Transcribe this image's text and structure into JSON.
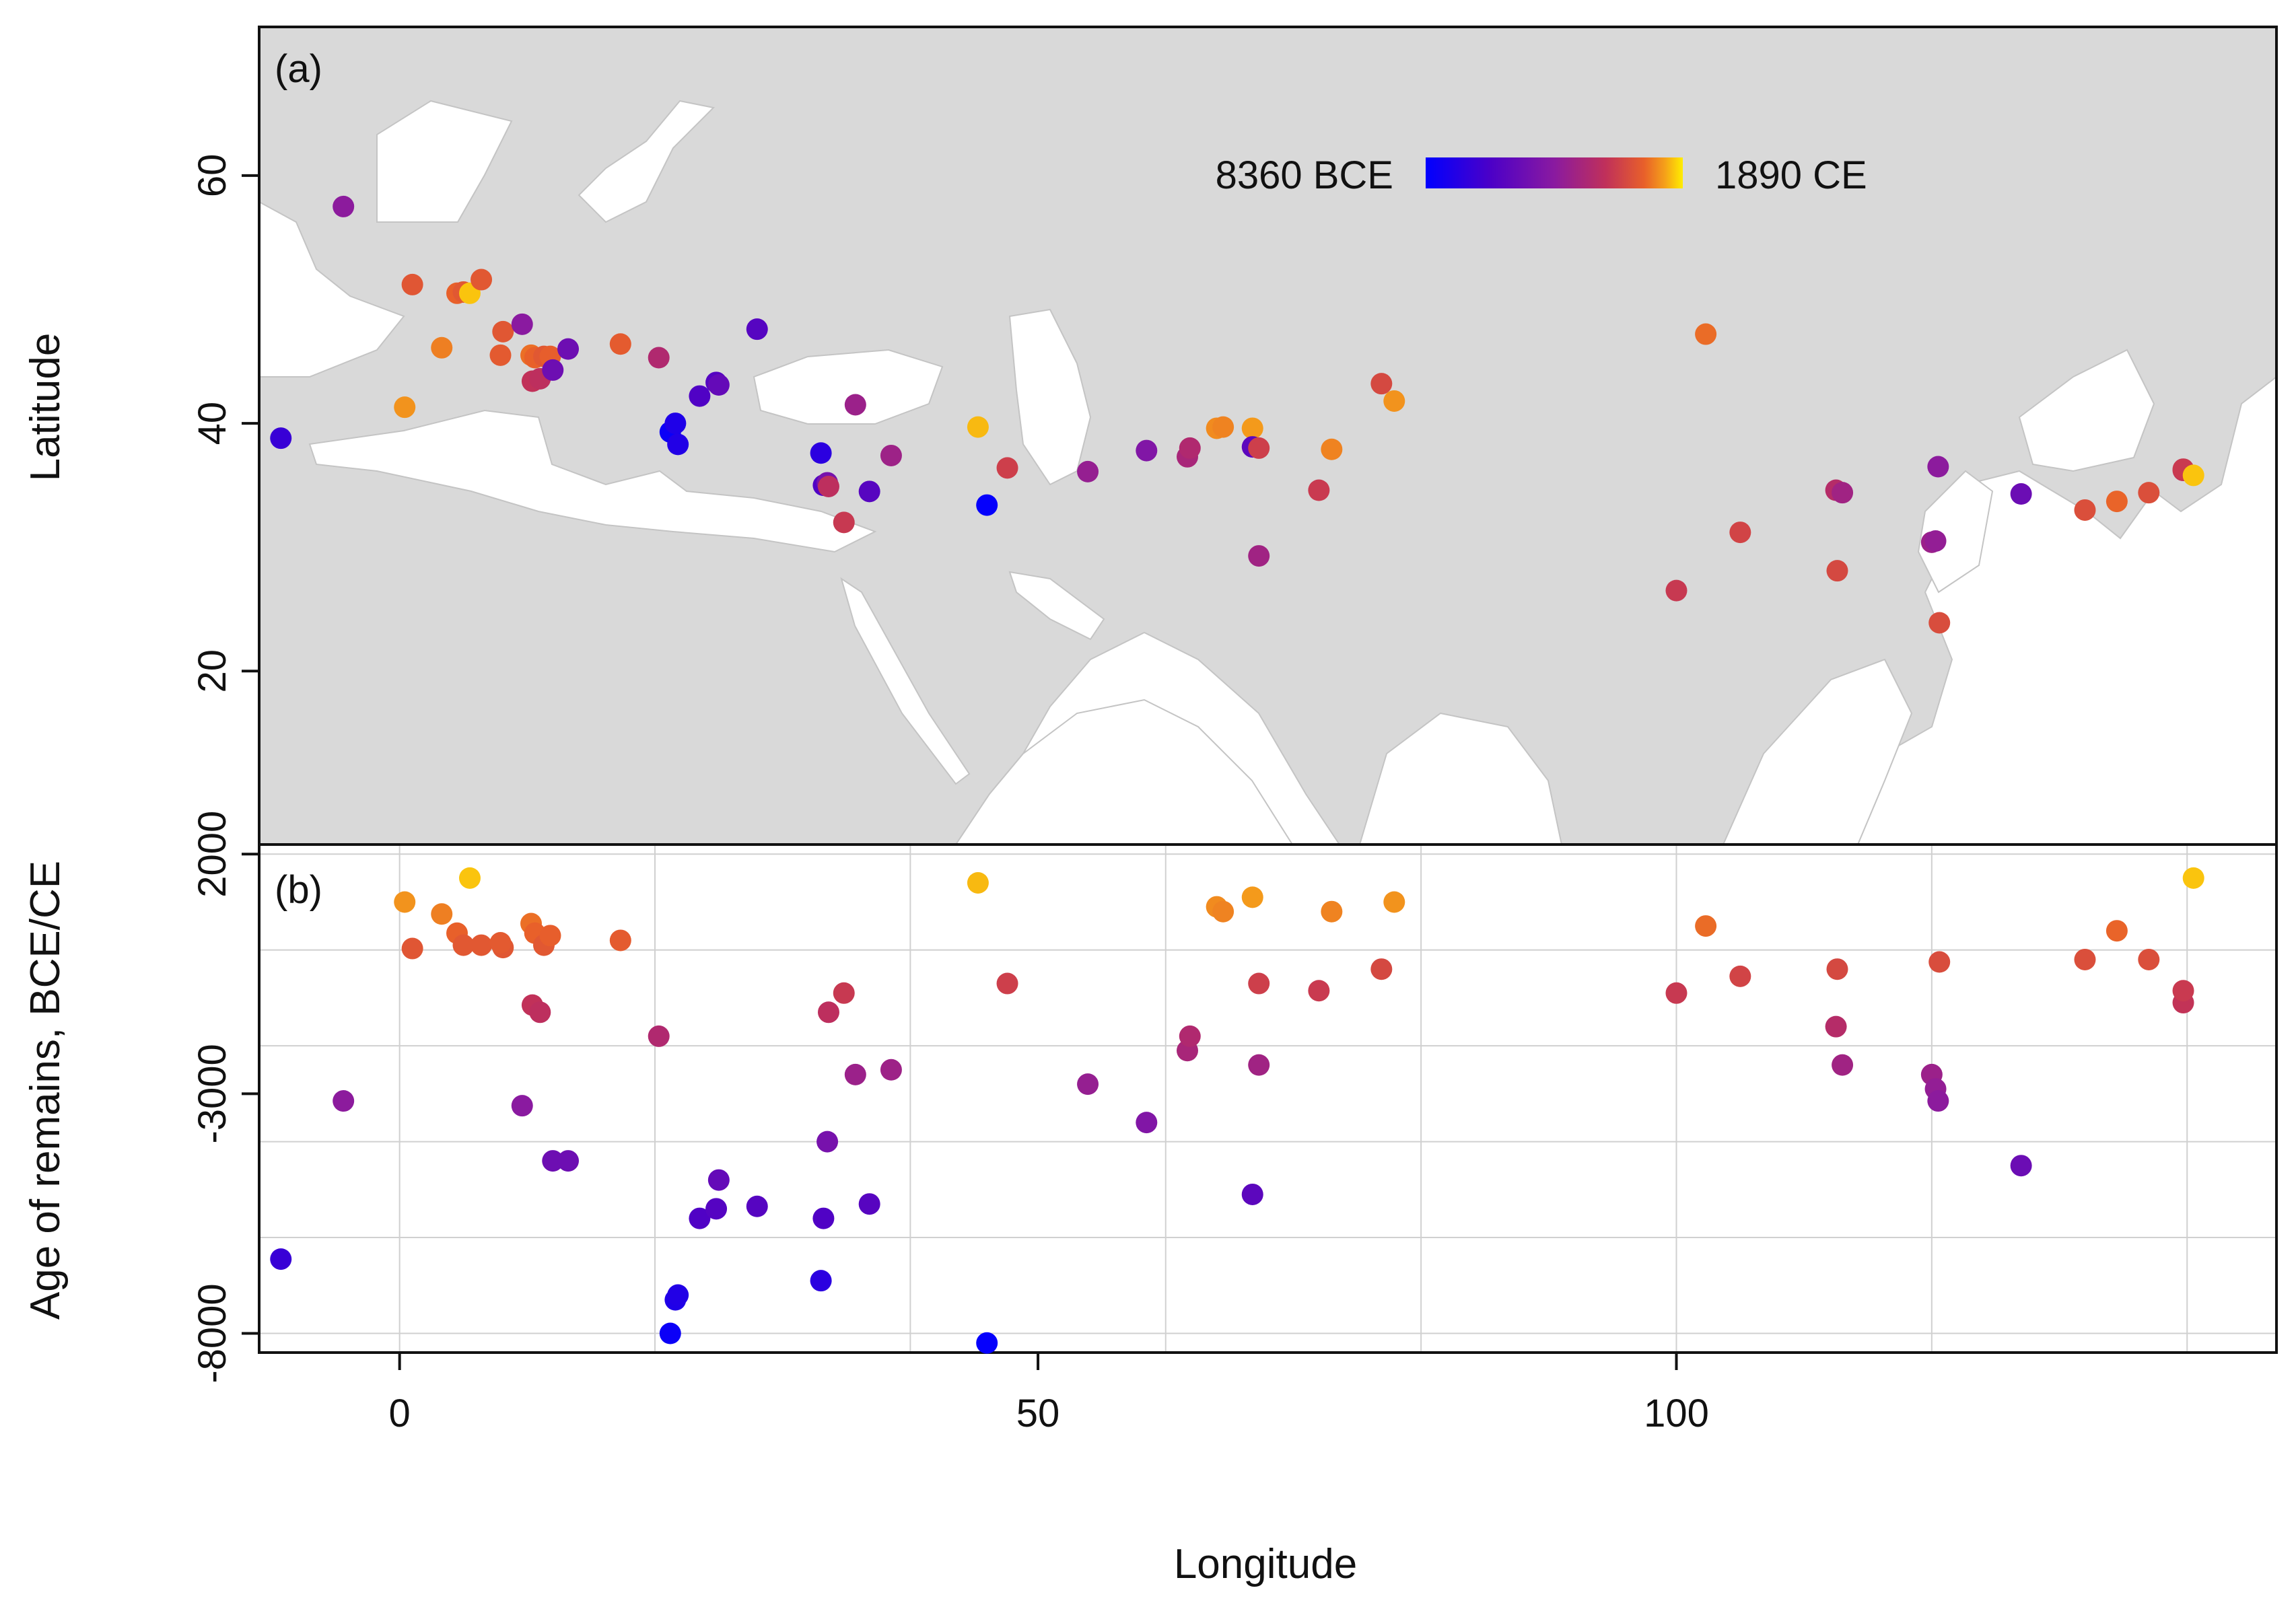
{
  "chart_data": [
    {
      "panel": "(a)",
      "type": "scatter",
      "title": "",
      "xlabel": "",
      "ylabel": "Latitude",
      "xlim": [
        -11,
        147
      ],
      "ylim": [
        6,
        72
      ],
      "yticks": [
        20,
        40,
        60
      ],
      "background": "land map of Europe and Asia",
      "colorbar": {
        "min_label": "8360 BCE",
        "max_label": "1890 CE",
        "min": -8360,
        "max": 1890,
        "colors": [
          "#0000ff",
          "#4b00c8",
          "#8a1aa0",
          "#c0305a",
          "#e8602a",
          "#f5a019",
          "#ffee00"
        ]
      },
      "legend_position": "top-right",
      "points": [
        {
          "lon": -4.4,
          "lat": 57.5,
          "age": -3150
        },
        {
          "lon": -9.3,
          "lat": 38.8,
          "age": -6450
        },
        {
          "lon": 0.4,
          "lat": 41.3,
          "age": 1000
        },
        {
          "lon": 3.3,
          "lat": 46.1,
          "age": 750
        },
        {
          "lon": 1.0,
          "lat": 51.2,
          "age": 30
        },
        {
          "lon": 4.5,
          "lat": 50.5,
          "age": 350
        },
        {
          "lon": 5.0,
          "lat": 50.6,
          "age": 100
        },
        {
          "lon": 5.5,
          "lat": 50.5,
          "age": 1500
        },
        {
          "lon": 6.4,
          "lat": 51.6,
          "age": 100
        },
        {
          "lon": 8.1,
          "lat": 47.4,
          "age": 50
        },
        {
          "lon": 7.9,
          "lat": 45.5,
          "age": 150
        },
        {
          "lon": 9.6,
          "lat": 48.0,
          "age": -3250
        },
        {
          "lon": 10.3,
          "lat": 45.5,
          "age": 550
        },
        {
          "lon": 10.4,
          "lat": 43.4,
          "age": -1150
        },
        {
          "lon": 10.6,
          "lat": 45.3,
          "age": 350
        },
        {
          "lon": 11.0,
          "lat": 43.6,
          "age": -1300
        },
        {
          "lon": 11.3,
          "lat": 45.4,
          "age": 100
        },
        {
          "lon": 11.8,
          "lat": 45.4,
          "age": 300
        },
        {
          "lon": 12.0,
          "lat": 44.3,
          "age": -4400
        },
        {
          "lon": 13.2,
          "lat": 46.0,
          "age": -4400
        },
        {
          "lon": 17.3,
          "lat": 46.4,
          "age": 200
        },
        {
          "lon": 20.3,
          "lat": 45.3,
          "age": -1800
        },
        {
          "lon": 21.2,
          "lat": 39.3,
          "age": -8000
        },
        {
          "lon": 21.6,
          "lat": 40.0,
          "age": -7300
        },
        {
          "lon": 21.8,
          "lat": 38.3,
          "age": -7200
        },
        {
          "lon": 23.5,
          "lat": 42.2,
          "age": -5600
        },
        {
          "lon": 24.8,
          "lat": 43.3,
          "age": -5400
        },
        {
          "lon": 25.0,
          "lat": 43.1,
          "age": -4800
        },
        {
          "lon": 28.0,
          "lat": 47.6,
          "age": -5350
        },
        {
          "lon": 33.0,
          "lat": 37.6,
          "age": -6900
        },
        {
          "lon": 33.2,
          "lat": 35.0,
          "age": -5600
        },
        {
          "lon": 33.5,
          "lat": 35.2,
          "age": -4000
        },
        {
          "lon": 33.6,
          "lat": 34.9,
          "age": -1300
        },
        {
          "lon": 34.8,
          "lat": 32.0,
          "age": -900
        },
        {
          "lon": 35.7,
          "lat": 41.5,
          "age": -2600
        },
        {
          "lon": 36.8,
          "lat": 34.5,
          "age": -5300
        },
        {
          "lon": 38.5,
          "lat": 37.4,
          "age": -2500
        },
        {
          "lon": 45.3,
          "lat": 39.7,
          "age": 1400
        },
        {
          "lon": 46.0,
          "lat": 33.4,
          "age": -8200
        },
        {
          "lon": 47.6,
          "lat": 36.4,
          "age": -700
        },
        {
          "lon": 53.9,
          "lat": 36.1,
          "age": -2800
        },
        {
          "lon": 58.5,
          "lat": 37.8,
          "age": -3600
        },
        {
          "lon": 61.7,
          "lat": 37.3,
          "age": -2100
        },
        {
          "lon": 61.9,
          "lat": 38.0,
          "age": -1800
        },
        {
          "lon": 64.0,
          "lat": 39.6,
          "age": 900
        },
        {
          "lon": 64.5,
          "lat": 39.7,
          "age": 800
        },
        {
          "lon": 66.8,
          "lat": 39.6,
          "age": 1100
        },
        {
          "lon": 66.8,
          "lat": 38.1,
          "age": -5100
        },
        {
          "lon": 67.3,
          "lat": 38.0,
          "age": -700
        },
        {
          "lon": 67.3,
          "lat": 29.3,
          "age": -2400
        },
        {
          "lon": 72.0,
          "lat": 34.6,
          "age": -850
        },
        {
          "lon": 73.0,
          "lat": 37.9,
          "age": 800
        },
        {
          "lon": 76.9,
          "lat": 43.2,
          "age": -400
        },
        {
          "lon": 77.9,
          "lat": 41.8,
          "age": 1000
        },
        {
          "lon": 102.3,
          "lat": 47.2,
          "age": 500
        },
        {
          "lon": 105.0,
          "lat": 31.2,
          "age": -550
        },
        {
          "lon": 100.0,
          "lat": 26.5,
          "age": -900
        },
        {
          "lon": 112.5,
          "lat": 34.6,
          "age": -1600
        },
        {
          "lon": 113.0,
          "lat": 34.4,
          "age": -2400
        },
        {
          "lon": 112.6,
          "lat": 28.1,
          "age": -400
        },
        {
          "lon": 120.0,
          "lat": 30.4,
          "age": -2600
        },
        {
          "lon": 120.3,
          "lat": 30.5,
          "age": -2900
        },
        {
          "lon": 120.5,
          "lat": 36.5,
          "age": -3150
        },
        {
          "lon": 120.6,
          "lat": 23.9,
          "age": -250
        },
        {
          "lon": 127.0,
          "lat": 34.3,
          "age": -4500
        },
        {
          "lon": 132.0,
          "lat": 33.0,
          "age": -200
        },
        {
          "lon": 134.5,
          "lat": 33.7,
          "age": 400
        },
        {
          "lon": 137.0,
          "lat": 34.4,
          "age": -200
        },
        {
          "lon": 139.7,
          "lat": 36.2,
          "age": -1100
        },
        {
          "lon": 139.7,
          "lat": 36.3,
          "age": -850
        },
        {
          "lon": 140.5,
          "lat": 35.8,
          "age": 1500
        }
      ]
    },
    {
      "panel": "(b)",
      "type": "scatter",
      "title": "",
      "xlabel": "Longitude",
      "ylabel": "Age of remains, BCE/CE",
      "xlim": [
        -11,
        147
      ],
      "ylim": [
        -8400,
        2200
      ],
      "xticks": [
        0,
        50,
        100
      ],
      "yticks": [
        -8000,
        -3000,
        2000
      ],
      "grid": true,
      "series": [
        {
          "name": "remains",
          "source": "same points as panel (a): x = lon, y = age"
        }
      ]
    }
  ]
}
